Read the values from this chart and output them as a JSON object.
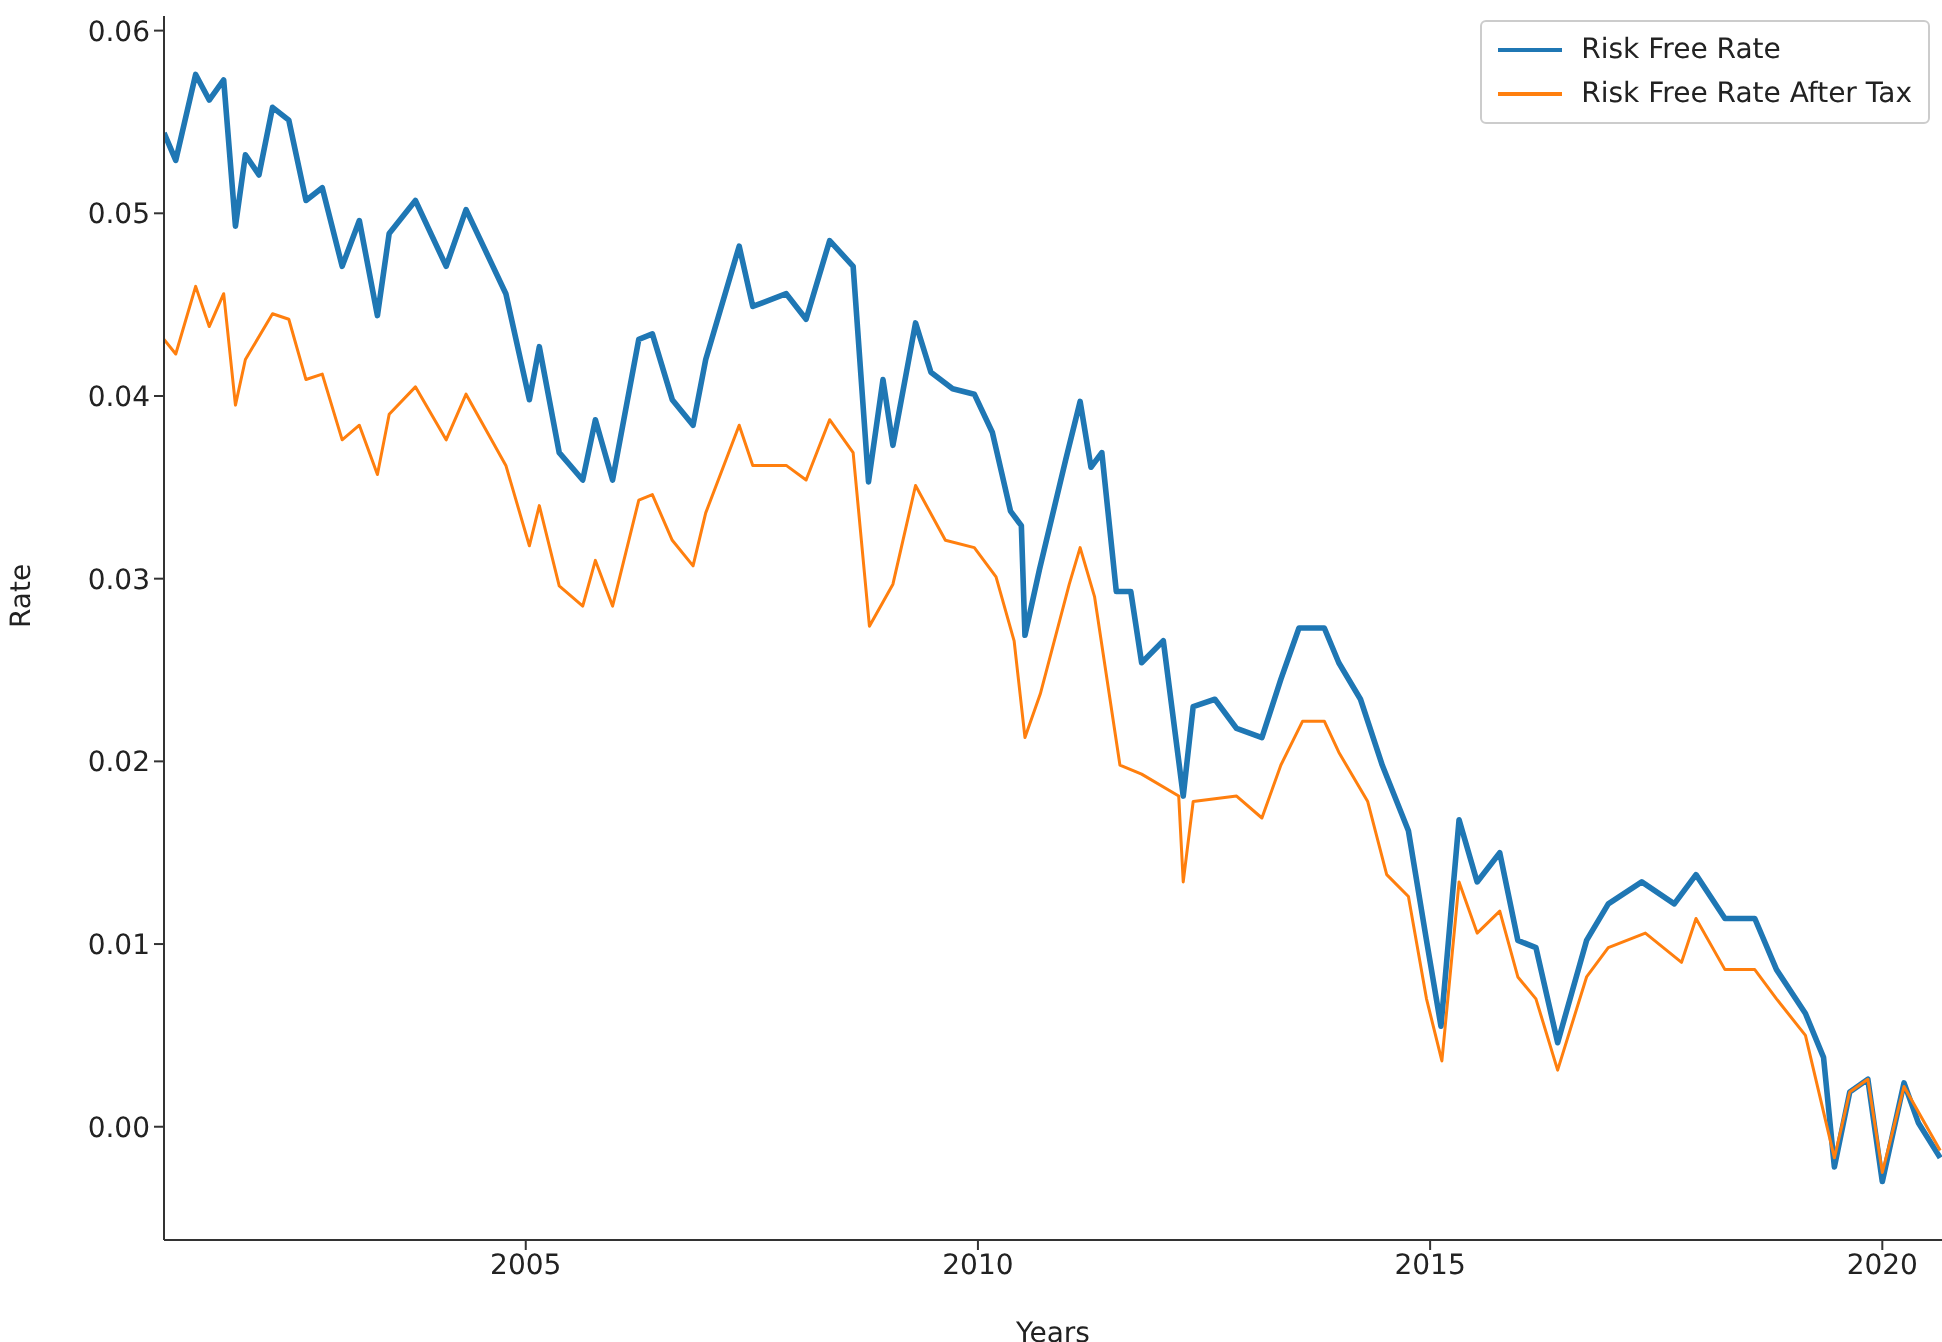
{
  "chart_data": {
    "type": "line",
    "xlabel": "Years",
    "ylabel": "Rate",
    "xlim": [
      2001,
      2020.66
    ],
    "xticks": [
      2005,
      2010,
      2015,
      2020
    ],
    "ylim": [
      -0.0062,
      0.0608
    ],
    "yticks": [
      {
        "value": 0,
        "label": "0.00"
      },
      {
        "value": 0.01,
        "label": "0.01"
      },
      {
        "value": 0.02,
        "label": "0.02"
      },
      {
        "value": 0.03,
        "label": "0.03"
      },
      {
        "value": 0.04,
        "label": "0.04"
      },
      {
        "value": 0.05,
        "label": "0.05"
      },
      {
        "value": 0.06,
        "label": "0.06"
      }
    ],
    "grid": false,
    "legend": "top right",
    "marker": "none",
    "line_style": "solid",
    "series": [
      {
        "name": "Risk Free Rate",
        "color": "#1f77b4",
        "x": [
          2001.0,
          2001.13,
          2001.35,
          2001.5,
          2001.66,
          2001.79,
          2001.9,
          2002.05,
          2002.2,
          2002.38,
          2002.57,
          2002.75,
          2002.97,
          2003.16,
          2003.36,
          2003.49,
          2003.78,
          2004.12,
          2004.34,
          2004.78,
          2005.04,
          2005.15,
          2005.37,
          2005.63,
          2005.77,
          2005.96,
          2006.25,
          2006.4,
          2006.62,
          2006.85,
          2006.99,
          2007.36,
          2007.51,
          2007.88,
          2008.1,
          2008.36,
          2008.62,
          2008.79,
          2008.95,
          2009.06,
          2009.31,
          2009.48,
          2009.72,
          2009.96,
          2010.16,
          2010.36,
          2010.48,
          2010.52,
          2010.68,
          2010.97,
          2011.13,
          2011.25,
          2011.37,
          2011.53,
          2011.69,
          2011.81,
          2012.05,
          2012.27,
          2012.38,
          2012.62,
          2012.86,
          2013.14,
          2013.35,
          2013.55,
          2013.83,
          2013.99,
          2014.23,
          2014.47,
          2014.76,
          2014.96,
          2015.12,
          2015.32,
          2015.52,
          2015.77,
          2015.97,
          2016.17,
          2016.41,
          2016.73,
          2016.97,
          2017.34,
          2017.7,
          2017.94,
          2018.26,
          2018.59,
          2018.83,
          2019.15,
          2019.35,
          2019.47,
          2019.64,
          2019.84,
          2020.0,
          2020.24,
          2020.4,
          2020.64
        ],
        "values": [
          0.0544,
          0.0529,
          0.0576,
          0.0562,
          0.0573,
          0.0493,
          0.0532,
          0.0521,
          0.0558,
          0.0551,
          0.0507,
          0.0514,
          0.0471,
          0.0496,
          0.0444,
          0.0489,
          0.0507,
          0.0471,
          0.0502,
          0.0456,
          0.0398,
          0.0427,
          0.0369,
          0.0354,
          0.0387,
          0.0354,
          0.0431,
          0.0434,
          0.0398,
          0.0384,
          0.042,
          0.0482,
          0.0449,
          0.0456,
          0.0442,
          0.0485,
          0.0471,
          0.0353,
          0.0409,
          0.0373,
          0.044,
          0.0413,
          0.0404,
          0.0401,
          0.038,
          0.0337,
          0.0329,
          0.0269,
          0.0305,
          0.0365,
          0.0397,
          0.0361,
          0.0369,
          0.0293,
          0.0293,
          0.0254,
          0.0266,
          0.0181,
          0.023,
          0.0234,
          0.0218,
          0.0213,
          0.0245,
          0.0273,
          0.0273,
          0.0254,
          0.0234,
          0.0198,
          0.0162,
          0.0102,
          0.0055,
          0.0168,
          0.0134,
          0.015,
          0.0102,
          0.0098,
          0.0046,
          0.0102,
          0.0122,
          0.0134,
          0.0122,
          0.0138,
          0.0114,
          0.0114,
          0.0086,
          0.0062,
          0.0038,
          -0.0022,
          0.0019,
          0.0026,
          -0.003,
          0.0024,
          0.0002,
          -0.0017
        ]
      },
      {
        "name": "Risk Free Rate After Tax",
        "color": "#ff7f0e",
        "x": [
          2001.0,
          2001.13,
          2001.35,
          2001.5,
          2001.66,
          2001.79,
          2001.9,
          2002.2,
          2002.38,
          2002.57,
          2002.75,
          2002.97,
          2003.16,
          2003.36,
          2003.49,
          2003.78,
          2004.12,
          2004.34,
          2004.78,
          2005.04,
          2005.15,
          2005.37,
          2005.63,
          2005.77,
          2005.96,
          2006.25,
          2006.4,
          2006.62,
          2006.85,
          2006.99,
          2007.36,
          2007.51,
          2007.88,
          2008.1,
          2008.36,
          2008.62,
          2008.8,
          2009.06,
          2009.31,
          2009.64,
          2009.96,
          2010.2,
          2010.4,
          2010.52,
          2010.69,
          2011.01,
          2011.13,
          2011.29,
          2011.57,
          2011.81,
          2012.22,
          2012.27,
          2012.38,
          2012.86,
          2013.14,
          2013.35,
          2013.59,
          2013.83,
          2013.99,
          2014.31,
          2014.52,
          2014.76,
          2014.96,
          2015.13,
          2015.32,
          2015.52,
          2015.77,
          2015.97,
          2016.17,
          2016.41,
          2016.73,
          2016.97,
          2017.38,
          2017.78,
          2017.94,
          2018.26,
          2018.59,
          2018.83,
          2019.15,
          2019.47,
          2019.64,
          2019.84,
          2020.0,
          2020.24,
          2020.64
        ],
        "values": [
          0.0431,
          0.0423,
          0.046,
          0.0438,
          0.0456,
          0.0395,
          0.042,
          0.0445,
          0.0442,
          0.0409,
          0.0412,
          0.0376,
          0.0384,
          0.0357,
          0.039,
          0.0405,
          0.0376,
          0.0401,
          0.0362,
          0.0318,
          0.034,
          0.0296,
          0.0285,
          0.031,
          0.0285,
          0.0343,
          0.0346,
          0.0321,
          0.0307,
          0.0336,
          0.0384,
          0.0362,
          0.0362,
          0.0354,
          0.0387,
          0.0369,
          0.0274,
          0.0297,
          0.0351,
          0.0321,
          0.0317,
          0.0301,
          0.0266,
          0.0213,
          0.0237,
          0.0297,
          0.0317,
          0.029,
          0.0198,
          0.0193,
          0.0181,
          0.0134,
          0.0178,
          0.0181,
          0.0169,
          0.0198,
          0.0222,
          0.0222,
          0.0205,
          0.0178,
          0.0138,
          0.0126,
          0.007,
          0.0036,
          0.0134,
          0.0106,
          0.0118,
          0.0082,
          0.007,
          0.0031,
          0.0082,
          0.0098,
          0.0106,
          0.009,
          0.0114,
          0.0086,
          0.0086,
          0.007,
          0.005,
          -0.0017,
          0.0019,
          0.0026,
          -0.0025,
          0.0022,
          -0.0013
        ]
      }
    ]
  }
}
